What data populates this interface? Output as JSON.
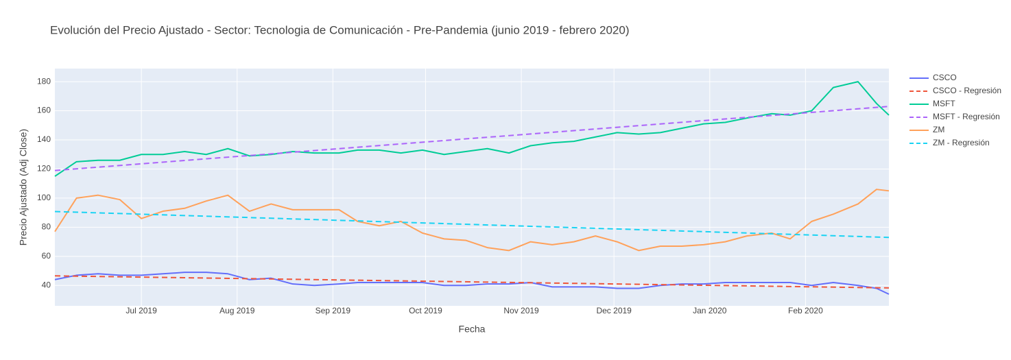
{
  "chart_data": {
    "type": "line",
    "title": "Evolución del Precio Ajustado - Sector: Tecnologia de Comunicación - Pre-Pandemia (junio 2019 - febrero 2020)",
    "x_label": "Fecha",
    "y_label": "Precio Ajustado (Adj Close)",
    "x": [
      "2019-06-03",
      "2019-06-10",
      "2019-06-17",
      "2019-06-24",
      "2019-07-01",
      "2019-07-08",
      "2019-07-15",
      "2019-07-22",
      "2019-07-29",
      "2019-08-05",
      "2019-08-12",
      "2019-08-19",
      "2019-08-26",
      "2019-09-03",
      "2019-09-09",
      "2019-09-16",
      "2019-09-23",
      "2019-09-30",
      "2019-10-07",
      "2019-10-14",
      "2019-10-21",
      "2019-10-28",
      "2019-11-04",
      "2019-11-11",
      "2019-11-18",
      "2019-11-25",
      "2019-12-02",
      "2019-12-09",
      "2019-12-16",
      "2019-12-23",
      "2019-12-30",
      "2020-01-06",
      "2020-01-13",
      "2020-01-21",
      "2020-01-27",
      "2020-02-03",
      "2020-02-10",
      "2020-02-18",
      "2020-02-24",
      "2020-02-28"
    ],
    "series": [
      {
        "name": "CSCO",
        "color": "#636efa",
        "dash": false,
        "values": [
          44,
          47,
          48,
          47,
          47,
          48,
          49,
          49,
          48,
          44,
          45,
          41,
          40,
          41,
          42,
          42,
          42,
          42,
          40,
          40,
          41,
          41,
          42,
          39,
          39,
          39,
          38,
          38,
          40,
          41,
          41,
          42,
          42,
          42,
          42,
          40,
          42,
          40,
          38,
          34
        ]
      },
      {
        "name": "CSCO - Regresión",
        "color": "#EF553B",
        "dash": true,
        "x": [
          "2019-06-03",
          "2020-02-28"
        ],
        "values": [
          46.6,
          38.3
        ]
      },
      {
        "name": "MSFT",
        "color": "#00cc96",
        "dash": false,
        "values": [
          115,
          125,
          126,
          126,
          130,
          130,
          132,
          130,
          134,
          129,
          130,
          132,
          131,
          131,
          133,
          133,
          131,
          133,
          130,
          132,
          134,
          131,
          136,
          138,
          139,
          142,
          145,
          144,
          145,
          148,
          151,
          152,
          155,
          158,
          157,
          160,
          176,
          180,
          165,
          157
        ]
      },
      {
        "name": "MSFT - Regresión",
        "color": "#ab63fa",
        "dash": true,
        "x": [
          "2019-06-03",
          "2020-02-28"
        ],
        "values": [
          119,
          163
        ]
      },
      {
        "name": "ZM",
        "color": "#FFA15A",
        "dash": false,
        "values": [
          77,
          100,
          102,
          99,
          86,
          91,
          93,
          98,
          102,
          91,
          96,
          92,
          92,
          92,
          84,
          81,
          84,
          76,
          72,
          71,
          66,
          64,
          70,
          68,
          70,
          74,
          70,
          64,
          67,
          67,
          68,
          70,
          74,
          76,
          72,
          84,
          89,
          96,
          106,
          105
        ]
      },
      {
        "name": "ZM - Regresión",
        "color": "#19d3f3",
        "dash": true,
        "x": [
          "2019-06-03",
          "2020-02-28"
        ],
        "values": [
          90.8,
          73
        ]
      }
    ],
    "xlim": [
      "2019-06-03",
      "2020-02-28"
    ],
    "xticks": [
      {
        "value": "2019-07-01",
        "label": "Jul 2019"
      },
      {
        "value": "2019-08-01",
        "label": "Aug 2019"
      },
      {
        "value": "2019-09-01",
        "label": "Sep 2019"
      },
      {
        "value": "2019-10-01",
        "label": "Oct 2019"
      },
      {
        "value": "2019-11-01",
        "label": "Nov 2019"
      },
      {
        "value": "2019-12-01",
        "label": "Dec 2019"
      },
      {
        "value": "2020-01-01",
        "label": "Jan 2020"
      },
      {
        "value": "2020-02-01",
        "label": "Feb 2020"
      }
    ],
    "ylim": [
      26,
      189
    ],
    "yticks": [
      40,
      60,
      80,
      100,
      120,
      140,
      160,
      180
    ],
    "grid": true,
    "legend": "right"
  }
}
